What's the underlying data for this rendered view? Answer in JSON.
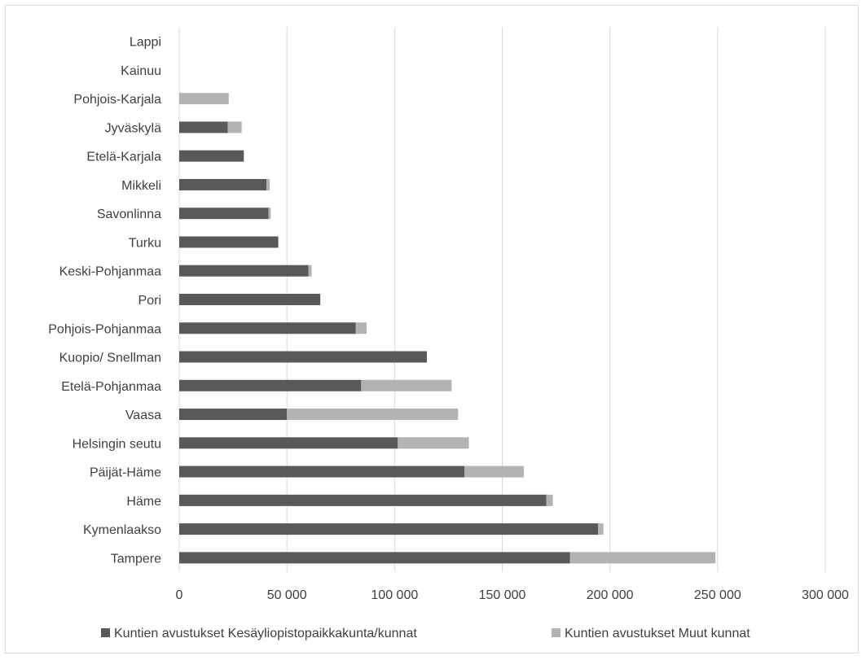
{
  "chart_data": {
    "type": "bar",
    "orientation": "horizontal",
    "stacked": true,
    "categories": [
      "Lappi",
      "Kainuu",
      "Pohjois-Karjala",
      "Jyväskylä",
      "Etelä-Karjala",
      "Mikkeli",
      "Savonlinna",
      "Turku",
      "Keski-Pohjanmaa",
      "Pori",
      "Pohjois-Pohjanmaa",
      "Kuopio/ Snellman",
      "Etelä-Pohjanmaa",
      "Vaasa",
      "Helsingin seutu",
      "Päijät-Häme",
      "Häme",
      "Kymenlaakso",
      "Tampere"
    ],
    "series": [
      {
        "name": "Kuntien avustukset Kesäyliopistopaikkakunta/kunnat",
        "color": "#595959",
        "values": [
          0,
          0,
          0,
          22500,
          30000,
          40500,
          41500,
          46000,
          60000,
          65500,
          82000,
          115000,
          84500,
          50000,
          101500,
          132500,
          170500,
          194500,
          181500
        ]
      },
      {
        "name": "Kuntien avustukset Muut kunnat",
        "color": "#b3b3b3",
        "values": [
          0,
          0,
          23000,
          6500,
          0,
          1500,
          1000,
          0,
          1500,
          0,
          5000,
          0,
          42000,
          79500,
          33000,
          27500,
          3000,
          2500,
          67500
        ]
      }
    ],
    "xlim": [
      0,
      300000
    ],
    "xticks": [
      0,
      50000,
      100000,
      150000,
      200000,
      250000,
      300000
    ],
    "xtick_labels": [
      "0",
      "50 000",
      "100 000",
      "150 000",
      "200 000",
      "250 000",
      "300 000"
    ],
    "grid": "vertical",
    "legend_position": "bottom",
    "title": "",
    "xlabel": "",
    "ylabel": ""
  }
}
